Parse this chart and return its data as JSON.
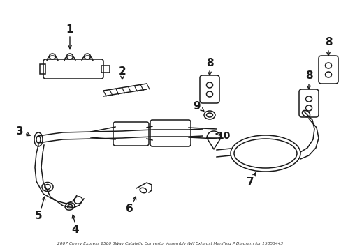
{
  "title": "2007 Chevy Express 2500 3Way Catalytic Convertor Assembly (W/ Exhaust Manifold P Diagram for 15853443",
  "bg_color": "#ffffff",
  "line_color": "#1a1a1a",
  "font_size": 11,
  "lw": 1.1
}
